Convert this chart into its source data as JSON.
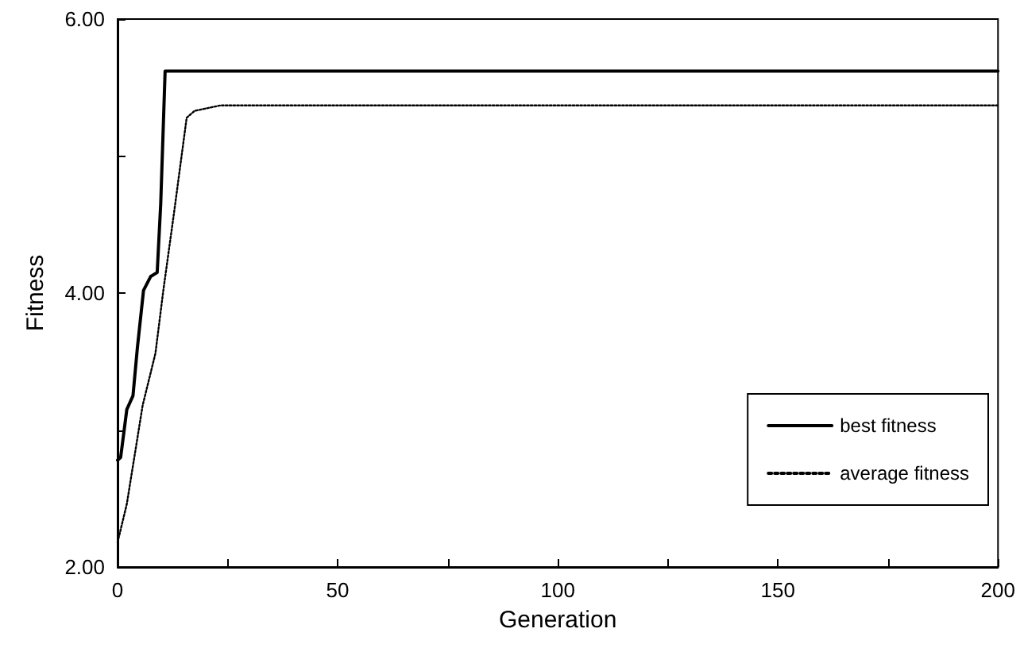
{
  "chart_data": {
    "type": "line",
    "xlabel": "Generation",
    "ylabel": "Fitness",
    "series": [
      {
        "name": "best fitness",
        "color": "#000000",
        "line_style": "solid",
        "x": [
          0,
          0.7,
          2.1,
          3.5,
          4.5,
          5.9,
          7.5,
          9,
          9.8,
          10.8,
          200
        ],
        "values": [
          2.78,
          2.8,
          3.15,
          3.25,
          3.6,
          4.02,
          4.12,
          4.15,
          4.65,
          5.62,
          5.62
        ]
      },
      {
        "name": "average fitness",
        "color": "#000000",
        "line_style": "dotted",
        "x": [
          0,
          2.1,
          5.7,
          8.6,
          10.4,
          12.8,
          15.7,
          17.5,
          23.4,
          200
        ],
        "values": [
          2.18,
          2.46,
          3.18,
          3.56,
          4.02,
          4.58,
          5.28,
          5.33,
          5.37,
          5.37
        ]
      }
    ],
    "xlim": [
      0,
      200
    ],
    "xticks": [
      0,
      {
        "value": 25,
        "label": null
      },
      50,
      {
        "value": 75,
        "label": null
      },
      100,
      {
        "value": 125,
        "label": null
      },
      150,
      {
        "value": 175,
        "label": null
      },
      200
    ],
    "ylim": [
      2,
      6
    ],
    "yticks": [
      {
        "value": 2,
        "label": "2.00"
      },
      {
        "value": 3,
        "label": null
      },
      {
        "value": 4,
        "label": "4.00"
      },
      {
        "value": 5,
        "label": null
      },
      {
        "value": 6,
        "label": "6.00"
      }
    ],
    "grid": false,
    "legend": "bottom right",
    "marker": "none"
  }
}
